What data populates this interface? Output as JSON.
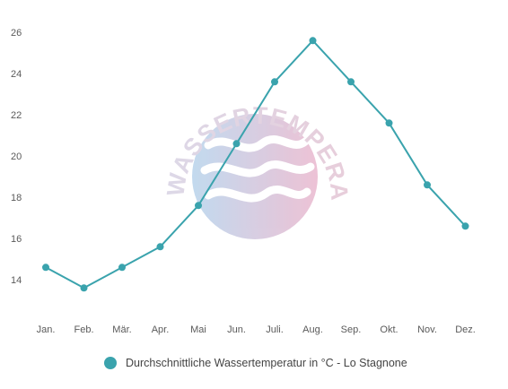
{
  "chart_data": {
    "type": "line",
    "categories": [
      "Jan.",
      "Feb.",
      "Mär.",
      "Apr.",
      "Mai",
      "Jun.",
      "Juli.",
      "Aug.",
      "Sep.",
      "Okt.",
      "Nov.",
      "Dez."
    ],
    "series": [
      {
        "name": "Durchschnittliche Wassertemperatur in °C - Lo Stagnone",
        "values": [
          14.6,
          13.6,
          14.6,
          15.6,
          17.6,
          20.6,
          23.6,
          25.6,
          23.6,
          21.6,
          18.6,
          16.6
        ]
      }
    ],
    "yticks": [
      14,
      16,
      18,
      20,
      22,
      24,
      26
    ],
    "ylim": [
      12.7,
      26.7
    ],
    "grid": false,
    "legend_position": "bottom",
    "colors": {
      "line": "#3aa3ad",
      "marker": "#3aa3ad"
    }
  },
  "watermark": {
    "text": "WASSERTEMPERATUR.ORG"
  }
}
